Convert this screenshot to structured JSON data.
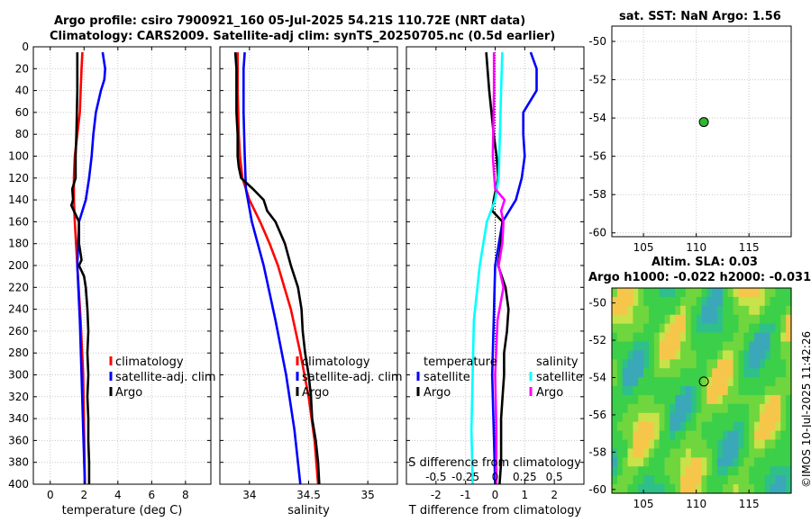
{
  "header": {
    "title_line1": "Argo profile: csiro 7900921_160 05-Jul-2025 54.21S 110.72E (NRT data)",
    "title_line2": "Climatology: CARS2009. Satellite-adj clim: synTS_20250705.nc (0.5d earlier)"
  },
  "watermark": "©IMOS 10-Jul-2025 11:42:26",
  "chart_data": [
    {
      "id": "temperature",
      "type": "line",
      "xlabel": "temperature (deg C)",
      "ylabel": "",
      "xlim": [
        -1,
        9.5
      ],
      "ylim": [
        400,
        0
      ],
      "xticks": [
        0,
        2,
        4,
        6,
        8
      ],
      "xticklabels": [
        "0",
        "2",
        "4",
        "6",
        "8"
      ],
      "yticks": [
        0,
        20,
        40,
        60,
        80,
        100,
        120,
        140,
        160,
        180,
        200,
        220,
        240,
        260,
        280,
        300,
        320,
        340,
        360,
        380,
        400
      ],
      "grid": true,
      "legend": [
        "climatology",
        "satellite-adj. clim",
        "Argo"
      ],
      "series": [
        {
          "name": "climatology",
          "color": "#ff0000",
          "depth": [
            5,
            20,
            40,
            60,
            80,
            100,
            120,
            140,
            160,
            200,
            250,
            300,
            350,
            400
          ],
          "values": [
            1.9,
            1.85,
            1.8,
            1.75,
            1.6,
            1.45,
            1.4,
            1.4,
            1.45,
            1.6,
            1.8,
            1.95,
            2.0,
            2.05
          ]
        },
        {
          "name": "satellite-adj. clim",
          "color": "#0000ff",
          "depth": [
            5,
            20,
            30,
            40,
            60,
            80,
            100,
            120,
            140,
            160,
            200,
            250,
            300,
            350,
            400
          ],
          "values": [
            3.1,
            3.25,
            3.2,
            3.0,
            2.7,
            2.55,
            2.45,
            2.3,
            2.1,
            1.7,
            1.6,
            1.75,
            1.85,
            1.95,
            2.05
          ]
        },
        {
          "name": "Argo",
          "color": "#000000",
          "depth": [
            5,
            40,
            80,
            100,
            120,
            130,
            140,
            145,
            150,
            160,
            180,
            195,
            200,
            210,
            220,
            240,
            260,
            280,
            300,
            320,
            340,
            360,
            380,
            400
          ],
          "values": [
            1.6,
            1.6,
            1.55,
            1.5,
            1.5,
            1.3,
            1.35,
            1.25,
            1.4,
            1.7,
            1.7,
            1.85,
            1.7,
            2.0,
            2.1,
            2.2,
            2.25,
            2.2,
            2.25,
            2.2,
            2.25,
            2.25,
            2.3,
            2.3
          ]
        }
      ]
    },
    {
      "id": "salinity",
      "type": "line",
      "xlabel": "salinity",
      "xlim": [
        33.75,
        35.25
      ],
      "ylim": [
        400,
        0
      ],
      "xticks": [
        34,
        34.5,
        35
      ],
      "xticklabels": [
        "34",
        "34.5",
        "35"
      ],
      "grid": true,
      "legend": [
        "climatology",
        "satellite-adj. clim",
        "Argo"
      ],
      "series": [
        {
          "name": "climatology",
          "color": "#ff0000",
          "depth": [
            5,
            40,
            80,
            100,
            120,
            140,
            160,
            180,
            200,
            240,
            280,
            320,
            360,
            400
          ],
          "values": [
            33.9,
            33.9,
            33.91,
            33.92,
            33.94,
            34.0,
            34.09,
            34.17,
            34.24,
            34.35,
            34.43,
            34.5,
            34.55,
            34.58
          ]
        },
        {
          "name": "satellite-adj. clim",
          "color": "#0000ff",
          "depth": [
            5,
            20,
            60,
            100,
            130,
            160,
            200,
            250,
            300,
            350,
            400
          ],
          "values": [
            33.96,
            33.95,
            33.95,
            33.96,
            33.97,
            34.02,
            34.12,
            34.22,
            34.31,
            34.38,
            34.43
          ]
        },
        {
          "name": "Argo",
          "color": "#000000",
          "depth": [
            5,
            20,
            40,
            60,
            80,
            100,
            110,
            120,
            130,
            140,
            150,
            160,
            180,
            200,
            220,
            240,
            260,
            280,
            300,
            320,
            340,
            360,
            380,
            400
          ],
          "values": [
            33.88,
            33.89,
            33.89,
            33.89,
            33.9,
            33.9,
            33.91,
            33.93,
            34.03,
            34.12,
            34.15,
            34.22,
            34.3,
            34.35,
            34.41,
            34.44,
            34.45,
            34.47,
            34.5,
            34.52,
            34.53,
            34.56,
            34.58,
            34.59
          ]
        }
      ]
    },
    {
      "id": "differences",
      "type": "line",
      "xlabel": "T difference from climatology",
      "top_label": "S difference from climatology",
      "xlim": [
        -3,
        3
      ],
      "ylim": [
        400,
        0
      ],
      "xticks": [
        -2,
        -1,
        0,
        1,
        2
      ],
      "xticklabels": [
        "-2",
        "-1",
        "0",
        "1",
        "2"
      ],
      "s_xticks": [
        -0.5,
        -0.25,
        0,
        0.25,
        0.5
      ],
      "s_xticklabels": [
        "-0.5",
        "-0.25",
        "0",
        "0.25",
        "0.5"
      ],
      "grid": true,
      "legend_temperature": {
        "header": "temperature",
        "items": [
          "satellite",
          "Argo"
        ]
      },
      "legend_salinity": {
        "header": "salinity",
        "items": [
          "satellite",
          "Argo"
        ]
      },
      "series": [
        {
          "name": "temperature satellite",
          "color": "#0000ff",
          "depth": [
            5,
            20,
            40,
            60,
            80,
            100,
            120,
            140,
            160,
            200,
            250,
            300,
            350,
            400
          ],
          "values": [
            1.2,
            1.4,
            1.4,
            0.95,
            0.95,
            1.0,
            0.9,
            0.7,
            0.25,
            0.0,
            -0.05,
            -0.1,
            -0.05,
            0.0
          ]
        },
        {
          "name": "temperature Argo",
          "color": "#000000",
          "depth": [
            5,
            40,
            80,
            100,
            120,
            140,
            150,
            160,
            180,
            200,
            220,
            240,
            260,
            280,
            300,
            320,
            340,
            360,
            380,
            400
          ],
          "values": [
            -0.3,
            -0.2,
            -0.05,
            0.05,
            0.1,
            -0.05,
            -0.1,
            0.25,
            0.2,
            0.1,
            0.35,
            0.45,
            0.4,
            0.3,
            0.3,
            0.25,
            0.2,
            0.2,
            0.2,
            0.15
          ]
        },
        {
          "name": "salinity satellite",
          "color": "#00ffff",
          "depth": [
            5,
            40,
            80,
            120,
            140,
            160,
            200,
            250,
            300,
            350,
            400
          ],
          "values": [
            0.06,
            0.05,
            0.04,
            0.03,
            0.0,
            -0.07,
            -0.13,
            -0.18,
            -0.19,
            -0.2,
            -0.19
          ]
        },
        {
          "name": "salinity Argo",
          "color": "#ff00ff",
          "depth": [
            5,
            40,
            100,
            130,
            140,
            150,
            160,
            180,
            200,
            220,
            250,
            300,
            350,
            400
          ],
          "values": [
            -0.01,
            -0.01,
            -0.02,
            0.0,
            0.08,
            0.05,
            0.07,
            0.06,
            0.03,
            0.07,
            0.02,
            0.0,
            0.01,
            0.01
          ]
        }
      ]
    },
    {
      "id": "sst_map",
      "type": "scatter",
      "title": "sat. SST: NaN Argo: 1.56",
      "xlim": [
        102,
        119
      ],
      "ylim": [
        -60.2,
        -49.2
      ],
      "xticks": [
        105,
        110,
        115
      ],
      "yticks": [
        -50,
        -52,
        -54,
        -56,
        -58,
        -60
      ],
      "points": [
        {
          "lon": 110.72,
          "lat": -54.21,
          "color": "#2eb82e"
        }
      ]
    },
    {
      "id": "sla_map",
      "type": "heatmap",
      "title_line1": "Altim. SLA: 0.03",
      "title_line2": "Argo h1000: -0.022 h2000: -0.031",
      "xlim": [
        102,
        119
      ],
      "ylim": [
        -60.2,
        -49.2
      ],
      "xticks": [
        105,
        110,
        115
      ],
      "yticks": [
        -50,
        -52,
        -54,
        -56,
        -58,
        -60
      ],
      "points": [
        {
          "lon": 110.72,
          "lat": -54.21
        }
      ]
    }
  ]
}
